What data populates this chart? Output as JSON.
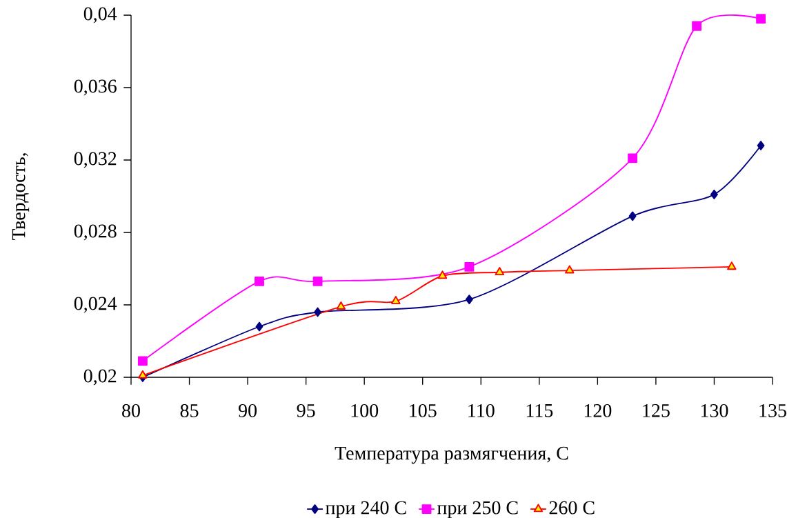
{
  "chart_data": {
    "type": "line",
    "xlabel": "Температура размягчения, С",
    "ylabel": "Твердость,",
    "xlim": [
      80,
      135
    ],
    "xticks": [
      80,
      85,
      90,
      95,
      100,
      105,
      110,
      115,
      120,
      125,
      130,
      135
    ],
    "ylim": [
      0.02,
      0.04
    ],
    "yticks": [
      {
        "value": 0.02,
        "label": "0,02"
      },
      {
        "value": 0.024,
        "label": "0,024"
      },
      {
        "value": 0.028,
        "label": "0,028"
      },
      {
        "value": 0.032,
        "label": "0,032"
      },
      {
        "value": 0.036,
        "label": "0,036"
      },
      {
        "value": 0.04,
        "label": "0,04"
      }
    ],
    "grid": false,
    "legend": "bottom",
    "series": [
      {
        "name": "при 240 С",
        "color": "#000080",
        "marker": "diamond",
        "x": [
          81,
          91,
          96,
          109,
          123,
          130,
          134
        ],
        "values": [
          0.02,
          0.0228,
          0.0236,
          0.0243,
          0.0289,
          0.0301,
          0.0328
        ]
      },
      {
        "name": "при 250 С",
        "color": "#ff00ff",
        "marker": "square",
        "x": [
          81,
          91,
          96,
          109,
          123,
          128.5,
          134
        ],
        "values": [
          0.0209,
          0.0253,
          0.0253,
          0.0261,
          0.0321,
          0.0394,
          0.0398
        ]
      },
      {
        "name": "260 С",
        "color": "#ff0000",
        "marker": "triangle",
        "x": [
          81,
          98,
          102.7,
          106.7,
          111.6,
          117.6,
          131.5
        ],
        "values": [
          0.0201,
          0.0239,
          0.0242,
          0.0256,
          0.0258,
          0.0259,
          0.0261
        ]
      }
    ]
  }
}
